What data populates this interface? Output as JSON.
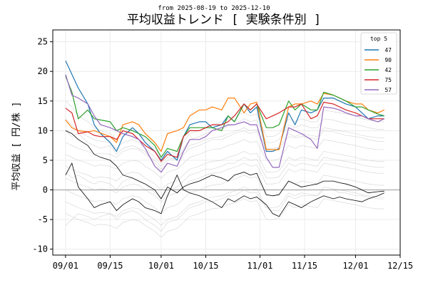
{
  "chart_data": {
    "type": "line",
    "subtitle": "from 2025-08-19 to 2025-12-10",
    "title": "平均収益トレンド [ 実験条件別 ]",
    "xlabel": "",
    "ylabel": "平均収益 [ 円/株 ]",
    "xlim": [
      "2025-08-28",
      "2025-12-15"
    ],
    "ylim": [
      -11,
      27
    ],
    "xticks": [
      "2025-09-01",
      "2025-09-15",
      "2025-10-01",
      "2025-10-15",
      "2025-11-01",
      "2025-11-15",
      "2025-12-01",
      "2025-12-15"
    ],
    "xtick_labels": [
      "09/01",
      "09/15",
      "10/01",
      "10/15",
      "11/01",
      "11/15",
      "12/01",
      "12/15"
    ],
    "yticks": [
      -10,
      -5,
      0,
      5,
      10,
      15,
      20,
      25
    ],
    "grid": true,
    "zero_line": true,
    "legend": {
      "title": "top 5",
      "position": "top-right"
    },
    "x": [
      "2025-09-01",
      "2025-09-03",
      "2025-09-05",
      "2025-09-08",
      "2025-09-10",
      "2025-09-12",
      "2025-09-15",
      "2025-09-17",
      "2025-09-19",
      "2025-09-22",
      "2025-09-24",
      "2025-09-26",
      "2025-09-29",
      "2025-10-01",
      "2025-10-03",
      "2025-10-06",
      "2025-10-08",
      "2025-10-10",
      "2025-10-13",
      "2025-10-15",
      "2025-10-17",
      "2025-10-20",
      "2025-10-22",
      "2025-10-24",
      "2025-10-27",
      "2025-10-29",
      "2025-10-31",
      "2025-11-03",
      "2025-11-05",
      "2025-11-07",
      "2025-11-10",
      "2025-11-12",
      "2025-11-14",
      "2025-11-17",
      "2025-11-19",
      "2025-11-21",
      "2025-11-24",
      "2025-11-26",
      "2025-11-28",
      "2025-12-01",
      "2025-12-03",
      "2025-12-05",
      "2025-12-08",
      "2025-12-10"
    ],
    "series": [
      {
        "name": "47",
        "color": "#1f77b4",
        "values": [
          21.8,
          19.5,
          17.2,
          14.5,
          11.0,
          9.5,
          8.0,
          6.5,
          9.0,
          10.5,
          9.5,
          8.0,
          6.5,
          5.0,
          6.5,
          5.0,
          9.0,
          11.0,
          11.5,
          11.5,
          10.5,
          11.0,
          12.5,
          11.5,
          14.5,
          13.0,
          14.0,
          6.5,
          6.5,
          7.0,
          13.0,
          11.0,
          13.5,
          13.0,
          13.5,
          15.5,
          15.5,
          15.0,
          14.5,
          14.0,
          13.0,
          12.0,
          12.5,
          12.5
        ]
      },
      {
        "name": "90",
        "color": "#ff7f0e",
        "values": [
          11.8,
          10.5,
          10.0,
          9.8,
          10.0,
          9.6,
          9.0,
          8.0,
          11.0,
          11.5,
          11.0,
          9.5,
          8.0,
          6.5,
          9.5,
          10.0,
          10.5,
          12.5,
          13.5,
          13.5,
          14.0,
          13.5,
          15.5,
          15.5,
          13.0,
          14.5,
          14.8,
          6.8,
          6.8,
          6.8,
          14.0,
          14.5,
          14.5,
          15.0,
          14.5,
          16.3,
          16.0,
          15.5,
          15.0,
          14.5,
          14.5,
          13.5,
          13.0,
          13.5
        ]
      },
      {
        "name": "42",
        "color": "#2ca02c",
        "values": [
          19.2,
          16.5,
          12.0,
          13.5,
          12.0,
          11.8,
          11.5,
          10.0,
          10.5,
          10.0,
          9.5,
          9.0,
          7.5,
          5.5,
          7.0,
          6.5,
          9.0,
          10.5,
          10.5,
          10.5,
          10.5,
          10.0,
          12.5,
          11.5,
          14.5,
          13.5,
          14.5,
          10.5,
          10.5,
          11.0,
          15.0,
          13.5,
          14.5,
          13.5,
          13.5,
          16.5,
          16.0,
          15.5,
          15.0,
          14.0,
          14.0,
          13.5,
          12.8,
          12.5
        ]
      },
      {
        "name": "75",
        "color": "#d62728",
        "values": [
          13.8,
          13.0,
          9.5,
          9.8,
          9.2,
          9.0,
          9.0,
          8.5,
          10.0,
          9.5,
          8.5,
          7.5,
          6.5,
          4.8,
          6.0,
          5.5,
          9.0,
          10.0,
          10.0,
          10.5,
          11.0,
          11.0,
          11.5,
          12.5,
          14.5,
          13.5,
          14.5,
          12.0,
          12.5,
          13.0,
          14.0,
          14.0,
          14.5,
          12.0,
          12.5,
          14.8,
          14.5,
          14.0,
          13.5,
          13.0,
          12.5,
          12.0,
          12.0,
          12.0
        ]
      },
      {
        "name": "57",
        "color": "#9467bd",
        "values": [
          19.5,
          16.0,
          15.5,
          14.5,
          12.5,
          11.0,
          10.5,
          10.0,
          9.5,
          9.0,
          8.5,
          7.0,
          4.0,
          3.0,
          4.5,
          4.0,
          6.5,
          8.5,
          8.5,
          9.0,
          10.0,
          10.5,
          11.0,
          11.0,
          11.5,
          11.0,
          11.0,
          5.5,
          3.8,
          3.8,
          10.5,
          10.0,
          9.5,
          8.5,
          7.0,
          14.0,
          13.8,
          13.5,
          13.0,
          12.5,
          12.5,
          12.0,
          11.5,
          12.0
        ]
      }
    ],
    "reference_lines": [
      {
        "color": "#000000",
        "values": [
          10.0,
          9.5,
          8.5,
          7.5,
          6.0,
          5.5,
          5.0,
          4.0,
          2.5,
          2.0,
          1.5,
          1.0,
          0.0,
          -1.5,
          0.5,
          -0.5,
          0.5,
          1.0,
          1.5,
          2.0,
          2.5,
          2.0,
          1.5,
          2.5,
          3.0,
          2.5,
          2.8,
          -0.8,
          -1.0,
          -0.8,
          1.5,
          1.0,
          0.5,
          0.8,
          1.0,
          1.5,
          1.5,
          1.2,
          1.0,
          0.5,
          0.0,
          -0.5,
          -0.3,
          -0.2
        ]
      },
      {
        "color": "#000000",
        "values": [
          2.5,
          4.5,
          0.5,
          -1.5,
          -3.0,
          -2.5,
          -2.0,
          -3.5,
          -2.5,
          -1.5,
          -2.0,
          -3.0,
          -3.5,
          -4.0,
          -1.0,
          2.5,
          0.0,
          -0.5,
          -1.0,
          -1.5,
          -2.0,
          -3.0,
          -1.5,
          -2.0,
          -1.0,
          -1.5,
          -1.2,
          -2.5,
          -4.0,
          -4.5,
          -2.0,
          -2.5,
          -3.0,
          -2.0,
          -1.5,
          -1.0,
          -1.5,
          -1.2,
          -1.5,
          -1.8,
          -2.0,
          -1.5,
          -1.0,
          -0.5
        ]
      }
    ],
    "background_lines": {
      "color": "#c8c8c8",
      "lines": [
        [
          8.0,
          7.5,
          7.0,
          6.5,
          6.0,
          6.2,
          6.0,
          5.5,
          6.5,
          7.0,
          6.8,
          6.0,
          5.0,
          4.0,
          5.0,
          5.5,
          6.5,
          7.5,
          8.0,
          8.5,
          8.8,
          9.0,
          9.5,
          9.8,
          10.5,
          10.0,
          10.2,
          7.0,
          7.0,
          7.2,
          9.5,
          9.0,
          9.5,
          9.2,
          9.0,
          10.5,
          10.2,
          10.0,
          9.8,
          9.5,
          9.2,
          9.0,
          8.8,
          8.8
        ],
        [
          6.0,
          5.5,
          5.0,
          4.5,
          4.0,
          4.2,
          4.0,
          3.5,
          4.5,
          5.0,
          4.8,
          4.0,
          3.0,
          2.0,
          3.0,
          3.5,
          4.5,
          5.5,
          6.0,
          6.5,
          6.8,
          7.0,
          7.5,
          7.8,
          8.5,
          8.0,
          8.2,
          5.0,
          5.0,
          5.2,
          7.5,
          7.0,
          7.5,
          7.2,
          7.0,
          8.5,
          8.2,
          8.0,
          7.8,
          7.5,
          7.2,
          7.0,
          6.8,
          6.8
        ],
        [
          4.0,
          3.5,
          3.0,
          2.5,
          2.0,
          2.2,
          2.0,
          1.5,
          2.5,
          3.0,
          2.8,
          2.0,
          1.0,
          0.0,
          1.0,
          1.5,
          2.5,
          3.5,
          4.0,
          4.5,
          4.8,
          5.0,
          5.5,
          5.8,
          6.5,
          6.0,
          6.2,
          3.0,
          3.0,
          3.2,
          5.5,
          5.0,
          5.5,
          5.2,
          5.0,
          6.5,
          6.2,
          6.0,
          5.8,
          5.5,
          5.2,
          5.0,
          4.8,
          4.8
        ],
        [
          2.0,
          1.5,
          1.0,
          0.5,
          0.0,
          0.2,
          0.0,
          -0.5,
          0.5,
          1.0,
          0.8,
          0.0,
          -1.0,
          -2.0,
          -1.0,
          -0.5,
          0.5,
          1.5,
          2.0,
          2.5,
          2.8,
          3.0,
          3.5,
          3.8,
          4.5,
          4.0,
          4.2,
          1.0,
          1.0,
          1.2,
          3.5,
          3.0,
          3.5,
          3.2,
          3.0,
          4.5,
          4.2,
          4.0,
          3.8,
          3.5,
          3.2,
          3.0,
          2.8,
          2.8
        ],
        [
          0.0,
          -0.5,
          -1.0,
          -1.5,
          -2.0,
          -1.8,
          -2.0,
          -2.5,
          -1.5,
          -1.0,
          -1.2,
          -2.0,
          -3.0,
          -4.0,
          -3.0,
          -2.5,
          -1.5,
          -0.5,
          0.0,
          0.5,
          0.8,
          1.0,
          1.5,
          1.8,
          2.5,
          2.0,
          2.2,
          -1.0,
          -1.0,
          -0.8,
          1.5,
          1.0,
          1.5,
          1.2,
          1.0,
          2.5,
          2.2,
          2.0,
          1.8,
          1.5,
          1.2,
          1.0,
          0.8,
          0.8
        ],
        [
          -2.0,
          -2.5,
          -3.0,
          -3.5,
          -4.0,
          -3.8,
          -4.0,
          -4.5,
          -3.5,
          -3.0,
          -3.2,
          -4.0,
          -5.0,
          -6.0,
          -5.0,
          -4.5,
          -3.5,
          -2.5,
          -2.0,
          -1.5,
          -1.2,
          -1.0,
          -0.5,
          -0.2,
          0.5,
          0.0,
          0.2,
          -3.0,
          -3.0,
          -2.8,
          -0.5,
          -1.0,
          -0.5,
          -0.8,
          -1.0,
          0.5,
          0.2,
          0.0,
          -0.2,
          -0.5,
          -0.8,
          -1.0,
          -1.2,
          -1.2
        ],
        [
          -4.0,
          -4.5,
          -5.0,
          -5.5,
          -6.0,
          -5.8,
          -6.0,
          -6.5,
          -5.5,
          -5.0,
          -5.2,
          -6.0,
          -7.0,
          -8.0,
          -7.0,
          -6.5,
          -5.5,
          -4.5,
          -4.0,
          -3.5,
          -3.2,
          -3.0,
          -2.5,
          -2.2,
          -1.5,
          -2.0,
          -1.8,
          -5.0,
          -5.0,
          -4.8,
          -2.5,
          -3.0,
          -2.5,
          -2.8,
          -3.0,
          -1.5,
          -1.8,
          -2.0,
          -2.2,
          -2.5,
          -2.8,
          -3.0,
          -3.2,
          -3.2
        ],
        [
          15.0,
          14.0,
          12.5,
          11.5,
          10.5,
          10.0,
          9.5,
          8.5,
          9.5,
          10.0,
          9.5,
          8.5,
          7.0,
          5.5,
          6.5,
          6.0,
          8.0,
          9.5,
          10.0,
          10.5,
          11.0,
          11.5,
          12.0,
          12.5,
          13.0,
          12.5,
          12.8,
          9.0,
          9.0,
          9.5,
          12.0,
          11.5,
          12.0,
          11.5,
          11.5,
          13.5,
          13.2,
          13.0,
          12.8,
          12.5,
          12.0,
          11.8,
          11.5,
          11.5
        ],
        [
          12.0,
          11.0,
          10.0,
          9.0,
          8.5,
          8.2,
          8.0,
          7.0,
          8.0,
          8.5,
          8.0,
          7.0,
          5.5,
          4.5,
          5.5,
          5.0,
          7.0,
          8.5,
          9.0,
          9.5,
          10.0,
          10.2,
          10.8,
          11.0,
          12.0,
          11.5,
          11.8,
          8.0,
          8.0,
          8.5,
          11.0,
          10.5,
          11.0,
          10.5,
          10.5,
          12.0,
          11.8,
          11.5,
          11.2,
          11.0,
          10.8,
          10.5,
          10.2,
          10.2
        ],
        [
          -6.0,
          -5.0,
          -4.0,
          -4.5,
          -5.0,
          -4.5,
          -4.0,
          -5.0,
          -4.0,
          -3.5,
          -4.0,
          -5.0,
          -6.0,
          -7.0,
          -5.5,
          -5.0,
          -4.0,
          -3.0,
          -2.5,
          -2.0,
          -2.0,
          -1.5,
          -1.0,
          -1.0,
          0.0,
          -0.5,
          -0.5,
          -3.0,
          -3.5,
          -3.5,
          -1.0,
          -1.5,
          -1.0,
          -1.0,
          -1.0,
          0.0,
          0.0,
          -0.5,
          -0.5,
          -1.0,
          -1.0,
          -1.2,
          -1.5,
          -1.5
        ],
        [
          10.0,
          9.0,
          9.5,
          8.0,
          7.5,
          7.0,
          7.5,
          6.0,
          7.0,
          7.5,
          7.0,
          6.5,
          4.5,
          3.5,
          4.5,
          4.0,
          6.0,
          7.0,
          7.5,
          8.0,
          8.5,
          8.5,
          9.0,
          9.5,
          10.0,
          9.5,
          9.8,
          6.5,
          6.5,
          6.8,
          9.0,
          8.8,
          9.0,
          8.8,
          8.5,
          10.0,
          9.8,
          9.5,
          9.2,
          9.0,
          8.8,
          8.5,
          8.2,
          8.2
        ],
        [
          3.0,
          2.0,
          2.5,
          1.5,
          1.0,
          1.5,
          1.0,
          0.0,
          1.5,
          2.0,
          1.5,
          1.0,
          -0.5,
          -1.5,
          0.0,
          0.5,
          1.5,
          2.5,
          3.0,
          3.5,
          3.5,
          4.0,
          4.5,
          4.5,
          5.5,
          5.0,
          5.2,
          2.0,
          2.0,
          2.2,
          4.5,
          4.0,
          4.5,
          4.2,
          4.0,
          5.5,
          5.2,
          5.0,
          4.8,
          4.5,
          4.2,
          4.0,
          3.8,
          3.8
        ]
      ]
    }
  }
}
